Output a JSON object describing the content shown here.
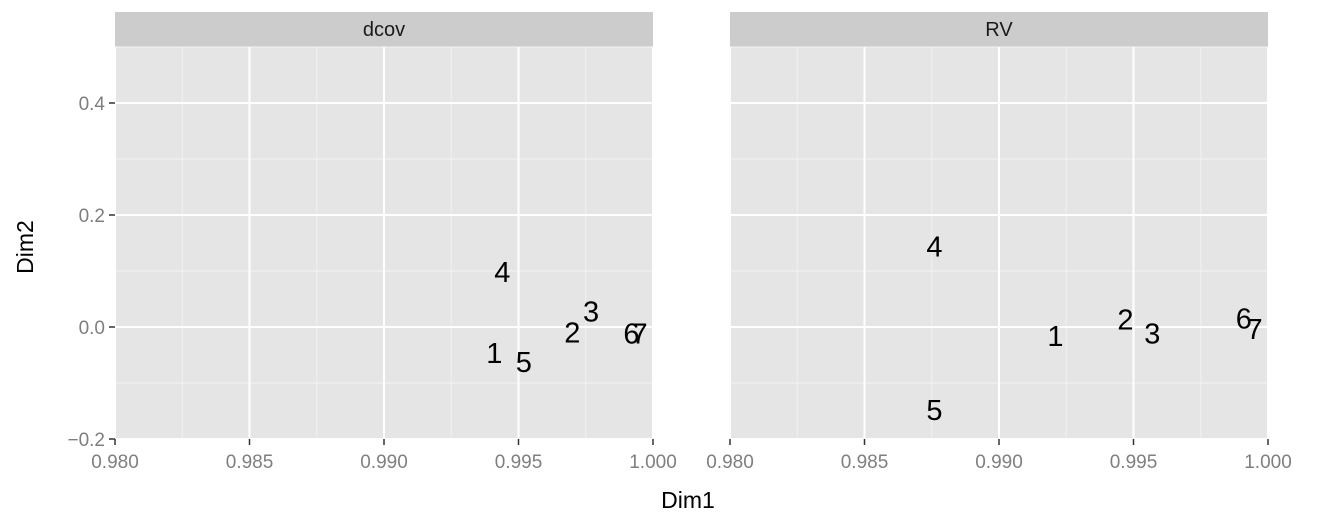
{
  "chart_data": {
    "type": "scatter",
    "style": "ggplot2-gray-facets",
    "xlabel": "Dim1",
    "ylabel": "Dim2",
    "xlim": [
      0.98,
      1.0
    ],
    "ylim": [
      -0.2,
      0.5
    ],
    "x_ticks": [
      "0.980",
      "0.985",
      "0.990",
      "0.995",
      "1.000"
    ],
    "y_ticks": [
      "−0.2",
      "0.0",
      "0.2",
      "0.4"
    ],
    "grid": true,
    "colors": {
      "panel_background": "#e5e5e5",
      "strip_background": "#cccccc",
      "grid_line": "#ffffff",
      "tick_label": "#7f7f7f",
      "point_label": "#000000"
    },
    "facets": [
      {
        "title": "dcov",
        "points": [
          {
            "label": "1",
            "x": 0.9941,
            "y": -0.048
          },
          {
            "label": "2",
            "x": 0.997,
            "y": -0.012
          },
          {
            "label": "3",
            "x": 0.9977,
            "y": 0.026
          },
          {
            "label": "4",
            "x": 0.9944,
            "y": 0.096
          },
          {
            "label": "5",
            "x": 0.9952,
            "y": -0.064
          },
          {
            "label": "6",
            "x": 0.9992,
            "y": -0.013
          },
          {
            "label": "7",
            "x": 0.9995,
            "y": -0.013
          }
        ]
      },
      {
        "title": "RV",
        "points": [
          {
            "label": "1",
            "x": 0.9921,
            "y": -0.018
          },
          {
            "label": "2",
            "x": 0.9947,
            "y": 0.012
          },
          {
            "label": "3",
            "x": 0.9957,
            "y": -0.013
          },
          {
            "label": "4",
            "x": 0.9876,
            "y": 0.142
          },
          {
            "label": "5",
            "x": 0.9876,
            "y": -0.15
          },
          {
            "label": "6",
            "x": 0.9991,
            "y": 0.013
          },
          {
            "label": "7",
            "x": 0.9995,
            "y": -0.005
          }
        ]
      }
    ]
  }
}
